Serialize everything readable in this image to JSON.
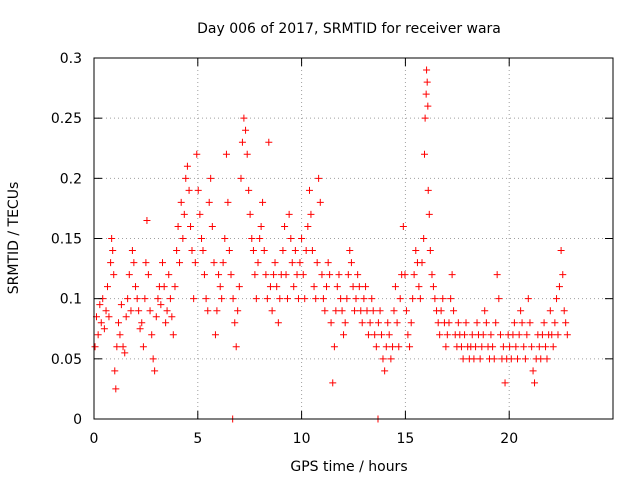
{
  "chart_data": {
    "type": "scatter",
    "title": "Day 006 of 2017, SRMTID for receiver wara",
    "xlabel": "GPS time / hours",
    "ylabel": "SRMTID / TECUs",
    "xlim": [
      0,
      25
    ],
    "ylim": [
      0,
      0.3
    ],
    "xticks": [
      0,
      5,
      10,
      15,
      20
    ],
    "yticks": [
      0,
      0.05,
      0.1,
      0.15,
      0.2,
      0.25,
      0.3
    ],
    "xtick_labels": [
      "0",
      "5",
      "10",
      "15",
      "20"
    ],
    "ytick_labels": [
      "0",
      "0.05",
      "0.1",
      "0.15",
      "0.2",
      "0.25",
      "0.3"
    ],
    "grid": true,
    "marker": "plus",
    "color": "#ff0000",
    "series": [
      {
        "name": "SRMTID",
        "points": [
          [
            0.05,
            0.06
          ],
          [
            0.12,
            0.085
          ],
          [
            0.2,
            0.07
          ],
          [
            0.28,
            0.095
          ],
          [
            0.35,
            0.08
          ],
          [
            0.42,
            0.1
          ],
          [
            0.5,
            0.075
          ],
          [
            0.58,
            0.09
          ],
          [
            0.65,
            0.11
          ],
          [
            0.72,
            0.085
          ],
          [
            0.8,
            0.13
          ],
          [
            0.85,
            0.15
          ],
          [
            0.9,
            0.14
          ],
          [
            0.95,
            0.12
          ],
          [
            1.0,
            0.04
          ],
          [
            1.05,
            0.025
          ],
          [
            1.1,
            0.06
          ],
          [
            1.18,
            0.08
          ],
          [
            1.25,
            0.07
          ],
          [
            1.32,
            0.095
          ],
          [
            1.4,
            0.06
          ],
          [
            1.48,
            0.055
          ],
          [
            1.55,
            0.085
          ],
          [
            1.62,
            0.1
          ],
          [
            1.7,
            0.12
          ],
          [
            1.78,
            0.09
          ],
          [
            1.85,
            0.14
          ],
          [
            1.92,
            0.13
          ],
          [
            2.0,
            0.11
          ],
          [
            2.08,
            0.1
          ],
          [
            2.15,
            0.09
          ],
          [
            2.22,
            0.075
          ],
          [
            2.3,
            0.08
          ],
          [
            2.38,
            0.06
          ],
          [
            2.45,
            0.1
          ],
          [
            2.5,
            0.13
          ],
          [
            2.55,
            0.165
          ],
          [
            2.62,
            0.12
          ],
          [
            2.7,
            0.09
          ],
          [
            2.78,
            0.07
          ],
          [
            2.85,
            0.05
          ],
          [
            2.92,
            0.04
          ],
          [
            3.0,
            0.085
          ],
          [
            3.08,
            0.1
          ],
          [
            3.15,
            0.11
          ],
          [
            3.22,
            0.095
          ],
          [
            3.3,
            0.13
          ],
          [
            3.38,
            0.11
          ],
          [
            3.45,
            0.08
          ],
          [
            3.52,
            0.09
          ],
          [
            3.6,
            0.12
          ],
          [
            3.68,
            0.1
          ],
          [
            3.75,
            0.085
          ],
          [
            3.82,
            0.07
          ],
          [
            3.9,
            0.11
          ],
          [
            3.98,
            0.14
          ],
          [
            4.05,
            0.16
          ],
          [
            4.12,
            0.13
          ],
          [
            4.2,
            0.18
          ],
          [
            4.28,
            0.15
          ],
          [
            4.35,
            0.17
          ],
          [
            4.42,
            0.2
          ],
          [
            4.5,
            0.21
          ],
          [
            4.58,
            0.19
          ],
          [
            4.65,
            0.16
          ],
          [
            4.72,
            0.14
          ],
          [
            4.8,
            0.1
          ],
          [
            4.88,
            0.13
          ],
          [
            4.95,
            0.22
          ],
          [
            5.02,
            0.19
          ],
          [
            5.1,
            0.17
          ],
          [
            5.18,
            0.15
          ],
          [
            5.25,
            0.14
          ],
          [
            5.32,
            0.12
          ],
          [
            5.4,
            0.1
          ],
          [
            5.48,
            0.09
          ],
          [
            5.55,
            0.18
          ],
          [
            5.62,
            0.2
          ],
          [
            5.7,
            0.16
          ],
          [
            5.78,
            0.13
          ],
          [
            5.85,
            0.07
          ],
          [
            5.92,
            0.09
          ],
          [
            6.0,
            0.12
          ],
          [
            6.08,
            0.11
          ],
          [
            6.15,
            0.1
          ],
          [
            6.22,
            0.13
          ],
          [
            6.3,
            0.15
          ],
          [
            6.38,
            0.22
          ],
          [
            6.45,
            0.18
          ],
          [
            6.52,
            0.14
          ],
          [
            6.6,
            0.12
          ],
          [
            6.68,
            0.0
          ],
          [
            6.7,
            0.1
          ],
          [
            6.78,
            0.08
          ],
          [
            6.85,
            0.06
          ],
          [
            6.92,
            0.09
          ],
          [
            7.0,
            0.11
          ],
          [
            7.08,
            0.2
          ],
          [
            7.15,
            0.23
          ],
          [
            7.22,
            0.25
          ],
          [
            7.3,
            0.24
          ],
          [
            7.38,
            0.22
          ],
          [
            7.45,
            0.19
          ],
          [
            7.52,
            0.17
          ],
          [
            7.6,
            0.15
          ],
          [
            7.68,
            0.14
          ],
          [
            7.75,
            0.12
          ],
          [
            7.82,
            0.1
          ],
          [
            7.9,
            0.13
          ],
          [
            7.98,
            0.15
          ],
          [
            8.05,
            0.16
          ],
          [
            8.12,
            0.18
          ],
          [
            8.2,
            0.14
          ],
          [
            8.28,
            0.12
          ],
          [
            8.35,
            0.1
          ],
          [
            8.42,
            0.23
          ],
          [
            8.5,
            0.11
          ],
          [
            8.58,
            0.09
          ],
          [
            8.65,
            0.12
          ],
          [
            8.72,
            0.13
          ],
          [
            8.8,
            0.11
          ],
          [
            8.88,
            0.08
          ],
          [
            8.95,
            0.1
          ],
          [
            9.02,
            0.12
          ],
          [
            9.1,
            0.14
          ],
          [
            9.18,
            0.16
          ],
          [
            9.25,
            0.12
          ],
          [
            9.32,
            0.1
          ],
          [
            9.4,
            0.17
          ],
          [
            9.48,
            0.15
          ],
          [
            9.55,
            0.13
          ],
          [
            9.62,
            0.11
          ],
          [
            9.7,
            0.14
          ],
          [
            9.78,
            0.12
          ],
          [
            9.85,
            0.1
          ],
          [
            9.92,
            0.13
          ],
          [
            10.0,
            0.15
          ],
          [
            10.08,
            0.12
          ],
          [
            10.15,
            0.1
          ],
          [
            10.22,
            0.14
          ],
          [
            10.3,
            0.16
          ],
          [
            10.38,
            0.19
          ],
          [
            10.45,
            0.17
          ],
          [
            10.52,
            0.14
          ],
          [
            10.6,
            0.11
          ],
          [
            10.68,
            0.1
          ],
          [
            10.75,
            0.13
          ],
          [
            10.82,
            0.2
          ],
          [
            10.9,
            0.18
          ],
          [
            10.98,
            0.12
          ],
          [
            11.05,
            0.1
          ],
          [
            11.12,
            0.09
          ],
          [
            11.2,
            0.11
          ],
          [
            11.28,
            0.13
          ],
          [
            11.35,
            0.12
          ],
          [
            11.42,
            0.08
          ],
          [
            11.5,
            0.03
          ],
          [
            11.58,
            0.06
          ],
          [
            11.65,
            0.09
          ],
          [
            11.72,
            0.11
          ],
          [
            11.8,
            0.12
          ],
          [
            11.88,
            0.1
          ],
          [
            11.95,
            0.09
          ],
          [
            12.02,
            0.07
          ],
          [
            12.1,
            0.08
          ],
          [
            12.18,
            0.1
          ],
          [
            12.25,
            0.12
          ],
          [
            12.32,
            0.14
          ],
          [
            12.4,
            0.13
          ],
          [
            12.48,
            0.11
          ],
          [
            12.55,
            0.09
          ],
          [
            12.62,
            0.1
          ],
          [
            12.7,
            0.12
          ],
          [
            12.78,
            0.11
          ],
          [
            12.85,
            0.09
          ],
          [
            12.92,
            0.08
          ],
          [
            13.0,
            0.1
          ],
          [
            13.08,
            0.11
          ],
          [
            13.15,
            0.09
          ],
          [
            13.22,
            0.07
          ],
          [
            13.3,
            0.08
          ],
          [
            13.38,
            0.1
          ],
          [
            13.45,
            0.09
          ],
          [
            13.52,
            0.07
          ],
          [
            13.6,
            0.06
          ],
          [
            13.68,
            0.0
          ],
          [
            13.7,
            0.08
          ],
          [
            13.78,
            0.09
          ],
          [
            13.85,
            0.07
          ],
          [
            13.92,
            0.05
          ],
          [
            14.0,
            0.04
          ],
          [
            14.08,
            0.06
          ],
          [
            14.15,
            0.08
          ],
          [
            14.22,
            0.07
          ],
          [
            14.3,
            0.05
          ],
          [
            14.38,
            0.06
          ],
          [
            14.45,
            0.09
          ],
          [
            14.52,
            0.11
          ],
          [
            14.6,
            0.08
          ],
          [
            14.68,
            0.06
          ],
          [
            14.75,
            0.1
          ],
          [
            14.82,
            0.12
          ],
          [
            14.9,
            0.16
          ],
          [
            14.98,
            0.12
          ],
          [
            15.05,
            0.09
          ],
          [
            15.12,
            0.07
          ],
          [
            15.2,
            0.06
          ],
          [
            15.28,
            0.08
          ],
          [
            15.35,
            0.1
          ],
          [
            15.42,
            0.12
          ],
          [
            15.5,
            0.14
          ],
          [
            15.58,
            0.13
          ],
          [
            15.65,
            0.11
          ],
          [
            15.72,
            0.1
          ],
          [
            15.8,
            0.13
          ],
          [
            15.88,
            0.15
          ],
          [
            15.92,
            0.22
          ],
          [
            15.95,
            0.25
          ],
          [
            16.0,
            0.27
          ],
          [
            16.02,
            0.29
          ],
          [
            16.05,
            0.28
          ],
          [
            16.08,
            0.26
          ],
          [
            16.1,
            0.19
          ],
          [
            16.15,
            0.17
          ],
          [
            16.2,
            0.14
          ],
          [
            16.28,
            0.12
          ],
          [
            16.35,
            0.11
          ],
          [
            16.42,
            0.1
          ],
          [
            16.5,
            0.09
          ],
          [
            16.58,
            0.08
          ],
          [
            16.65,
            0.07
          ],
          [
            16.72,
            0.09
          ],
          [
            16.8,
            0.1
          ],
          [
            16.88,
            0.08
          ],
          [
            16.95,
            0.06
          ],
          [
            17.02,
            0.07
          ],
          [
            17.1,
            0.08
          ],
          [
            17.18,
            0.1
          ],
          [
            17.25,
            0.12
          ],
          [
            17.32,
            0.09
          ],
          [
            17.4,
            0.07
          ],
          [
            17.48,
            0.06
          ],
          [
            17.55,
            0.08
          ],
          [
            17.62,
            0.07
          ],
          [
            17.7,
            0.06
          ],
          [
            17.78,
            0.05
          ],
          [
            17.85,
            0.07
          ],
          [
            17.92,
            0.08
          ],
          [
            18.0,
            0.06
          ],
          [
            18.08,
            0.05
          ],
          [
            18.15,
            0.06
          ],
          [
            18.22,
            0.07
          ],
          [
            18.3,
            0.05
          ],
          [
            18.38,
            0.06
          ],
          [
            18.45,
            0.08
          ],
          [
            18.52,
            0.07
          ],
          [
            18.6,
            0.05
          ],
          [
            18.68,
            0.06
          ],
          [
            18.75,
            0.07
          ],
          [
            18.82,
            0.09
          ],
          [
            18.9,
            0.08
          ],
          [
            18.98,
            0.06
          ],
          [
            19.05,
            0.05
          ],
          [
            19.12,
            0.07
          ],
          [
            19.2,
            0.06
          ],
          [
            19.28,
            0.05
          ],
          [
            19.35,
            0.08
          ],
          [
            19.42,
            0.12
          ],
          [
            19.5,
            0.1
          ],
          [
            19.58,
            0.07
          ],
          [
            19.65,
            0.05
          ],
          [
            19.72,
            0.06
          ],
          [
            19.8,
            0.03
          ],
          [
            19.88,
            0.05
          ],
          [
            19.95,
            0.07
          ],
          [
            20.02,
            0.06
          ],
          [
            20.1,
            0.05
          ],
          [
            20.18,
            0.07
          ],
          [
            20.25,
            0.08
          ],
          [
            20.32,
            0.06
          ],
          [
            20.4,
            0.05
          ],
          [
            20.48,
            0.07
          ],
          [
            20.55,
            0.09
          ],
          [
            20.62,
            0.08
          ],
          [
            20.7,
            0.06
          ],
          [
            20.78,
            0.05
          ],
          [
            20.85,
            0.07
          ],
          [
            20.92,
            0.1
          ],
          [
            21.0,
            0.08
          ],
          [
            21.08,
            0.06
          ],
          [
            21.15,
            0.04
          ],
          [
            21.22,
            0.03
          ],
          [
            21.3,
            0.05
          ],
          [
            21.38,
            0.07
          ],
          [
            21.45,
            0.06
          ],
          [
            21.52,
            0.05
          ],
          [
            21.6,
            0.07
          ],
          [
            21.68,
            0.08
          ],
          [
            21.75,
            0.06
          ],
          [
            21.82,
            0.05
          ],
          [
            21.9,
            0.07
          ],
          [
            21.98,
            0.09
          ],
          [
            22.05,
            0.07
          ],
          [
            22.12,
            0.06
          ],
          [
            22.2,
            0.08
          ],
          [
            22.28,
            0.1
          ],
          [
            22.35,
            0.07
          ],
          [
            22.42,
            0.11
          ],
          [
            22.5,
            0.14
          ],
          [
            22.58,
            0.12
          ],
          [
            22.65,
            0.09
          ],
          [
            22.72,
            0.08
          ],
          [
            22.8,
            0.07
          ]
        ]
      }
    ]
  }
}
